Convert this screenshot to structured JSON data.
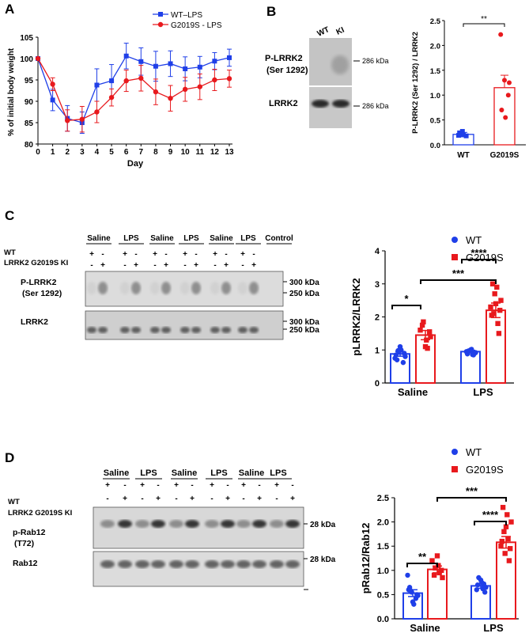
{
  "figure": {
    "colors": {
      "wt": "#1f3fe8",
      "ki": "#e8191d",
      "wt_bar": "#1f3fe8",
      "ki_bar": "#e8191d"
    },
    "panels": {
      "A": {
        "letter": "A"
      },
      "B": {
        "letter": "B"
      },
      "C": {
        "letter": "C"
      },
      "D": {
        "letter": "D"
      }
    }
  },
  "chart_data": [
    {
      "id": "A",
      "type": "line",
      "xlabel": "Day",
      "ylabel": "% of initial body weight",
      "x": [
        0,
        1,
        2,
        3,
        4,
        5,
        6,
        7,
        8,
        9,
        10,
        11,
        12,
        13
      ],
      "x_ticks": [
        "0",
        "1",
        "2",
        "3",
        "4",
        "5",
        "6",
        "7",
        "8",
        "9",
        "10",
        "11",
        "12",
        "13"
      ],
      "ylim": [
        80,
        105
      ],
      "y_ticks": [
        "80",
        "85",
        "90",
        "95",
        "100",
        "105"
      ],
      "legend": [
        "WT–LPS",
        "G2019S - LPS"
      ],
      "series": [
        {
          "name": "WT–LPS",
          "values": [
            100,
            90.3,
            86,
            85,
            93.8,
            94.8,
            100.6,
            99.3,
            98.2,
            98.8,
            97.6,
            98,
            99.4,
            100.2
          ],
          "errors": [
            0,
            2.5,
            3,
            2.5,
            3.8,
            3.8,
            3,
            3.2,
            3.5,
            3,
            2.8,
            2.5,
            2,
            2
          ]
        },
        {
          "name": "G2019S - LPS",
          "values": [
            100,
            94,
            85.5,
            85.8,
            87.5,
            90.9,
            94.8,
            95.4,
            92.2,
            90.7,
            92.8,
            93.4,
            95,
            95.3
          ],
          "errors": [
            0,
            1.5,
            2.5,
            3,
            2.5,
            2,
            2.5,
            3,
            3,
            3,
            2.8,
            3,
            2.5,
            2
          ]
        }
      ]
    },
    {
      "id": "B",
      "type": "bar",
      "ylabel": "P-LRRK2 (Ser 1292) / LRRK2",
      "categories": [
        "WT",
        "G2019S"
      ],
      "values": [
        0.21,
        1.15
      ],
      "errors": [
        0.04,
        0.25
      ],
      "points": [
        [
          0.19,
          0.27,
          0.18,
          0.24,
          0.2
        ],
        [
          2.22,
          1.3,
          1.0,
          0.7,
          0.55,
          1.25
        ]
      ],
      "ylim": [
        0,
        2.5
      ],
      "y_ticks": [
        "0.0",
        "0.5",
        "1.0",
        "1.5",
        "2.0",
        "2.5"
      ],
      "significance": "**"
    },
    {
      "id": "C",
      "type": "bar",
      "ylabel": "pLRRK2/LRRK2",
      "categories": [
        "Saline",
        "LPS"
      ],
      "series": [
        {
          "name": "WT",
          "values": [
            0.88,
            0.95
          ],
          "errors": [
            0.07,
            0.04
          ],
          "points": [
            [
              0.75,
              0.95,
              0.62,
              0.85,
              1.1,
              0.9,
              0.7,
              1.0,
              0.8,
              0.98
            ],
            [
              0.85,
              0.95,
              1.0,
              0.9,
              0.88,
              1.02,
              0.92,
              0.97,
              0.86
            ]
          ]
        },
        {
          "name": "G2019S",
          "values": [
            1.45,
            2.2
          ],
          "errors": [
            0.14,
            0.22
          ],
          "points": [
            [
              1.1,
              1.55,
              1.75,
              1.3,
              1.4,
              1.85,
              1.05,
              1.6
            ],
            [
              3.0,
              2.9,
              2.5,
              2.1,
              1.8,
              2.3,
              2.7,
              1.5,
              2.05,
              2.4,
              2.2
            ]
          ]
        }
      ],
      "ylim": [
        0,
        4
      ],
      "y_ticks": [
        "0",
        "1",
        "2",
        "3",
        "4"
      ],
      "legend": [
        "WT",
        "G2019S"
      ],
      "significance": [
        "*",
        "***",
        "****"
      ]
    },
    {
      "id": "D",
      "type": "bar",
      "ylabel": "pRab12/Rab12",
      "categories": [
        "Saline",
        "LPS"
      ],
      "series": [
        {
          "name": "WT",
          "values": [
            0.53,
            0.68
          ],
          "errors": [
            0.07,
            0.05
          ],
          "points": [
            [
              0.9,
              0.55,
              0.42,
              0.6,
              0.35,
              0.5,
              0.65,
              0.3,
              0.48,
              0.58
            ],
            [
              0.72,
              0.6,
              0.8,
              0.55,
              0.7,
              0.75,
              0.65,
              0.85,
              0.62
            ]
          ]
        },
        {
          "name": "G2019S",
          "values": [
            1.02,
            1.58
          ],
          "errors": [
            0.07,
            0.12
          ],
          "points": [
            [
              1.3,
              1.0,
              0.9,
              1.1,
              0.85,
              1.05,
              0.95,
              1.2
            ],
            [
              2.3,
              2.15,
              2.0,
              1.8,
              1.65,
              1.5,
              1.35,
              1.2,
              1.6,
              1.9,
              1.45
            ]
          ]
        }
      ],
      "ylim": [
        0,
        2.5
      ],
      "y_ticks": [
        "0.0",
        "0.5",
        "1.0",
        "1.5",
        "2.0",
        "2.5"
      ],
      "legend": [
        "WT",
        "G2019S"
      ],
      "significance": [
        "**",
        "***",
        "****"
      ]
    }
  ],
  "blots": {
    "B": {
      "lanes": [
        "WT",
        "KI"
      ],
      "rows": [
        {
          "label_line1": "P-LRRK2",
          "label_line2": "(Ser 1292)",
          "marker": "286 kDa"
        },
        {
          "label_line1": "LRRK2",
          "label_line2": "",
          "marker": "286 kDa"
        }
      ]
    },
    "C": {
      "groups": [
        "Saline",
        "LPS",
        "Saline",
        "LPS",
        "Saline",
        "LPS",
        "Control"
      ],
      "genotype_labels": [
        "WT",
        "LRRK2 G2019S KI"
      ],
      "wt_signs": [
        "+",
        "-",
        "+",
        "-",
        "+",
        "-",
        "+",
        "-",
        "+",
        "-",
        "+",
        "-"
      ],
      "ki_signs": [
        "-",
        "+",
        "-",
        "+",
        "-",
        "+",
        "-",
        "+",
        "-",
        "+",
        "-",
        "+"
      ],
      "rows": [
        {
          "label_line1": "P-LRRK2",
          "label_line2": "(Ser 1292)",
          "markers": [
            "300 kDa",
            "250 kDa"
          ]
        },
        {
          "label_line1": "LRRK2",
          "label_line2": "",
          "markers": [
            "300 kDa",
            "250 kDa"
          ]
        }
      ]
    },
    "D": {
      "groups": [
        "Saline",
        "LPS",
        "Saline",
        "LPS",
        "Saline",
        "LPS"
      ],
      "genotype_labels": [
        "WT",
        "LRRK2 G2019S KI"
      ],
      "wt_signs": [
        "+",
        "-",
        "+",
        "-",
        "+",
        "-",
        "+",
        "-",
        "+",
        "-",
        "+",
        "-"
      ],
      "ki_signs": [
        "-",
        "+",
        "-",
        "+",
        "-",
        "+",
        "-",
        "+",
        "-",
        "+",
        "-",
        "+"
      ],
      "rows": [
        {
          "label_line1": "p-Rab12",
          "label_line2": "(T72)",
          "marker": "28 kDa"
        },
        {
          "label_line1": "Rab12",
          "label_line2": "",
          "marker": "28 kDa"
        }
      ]
    }
  }
}
